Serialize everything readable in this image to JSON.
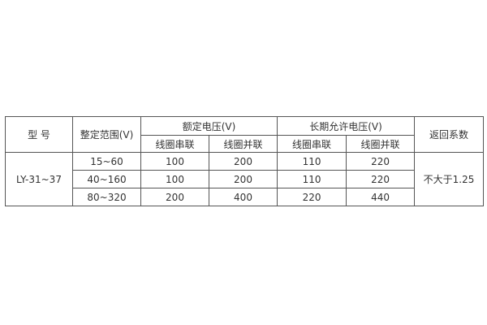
{
  "table": {
    "headers": {
      "model": "型 号",
      "range": "整定范围(V)",
      "rated_voltage": "额定电压(V)",
      "long_term_voltage": "长期允许电压(V)",
      "return_coefficient": "返回系数",
      "series": "线圈串联",
      "parallel": "线圈并联"
    },
    "model": "LY-31~37",
    "return_coefficient": "不大于1.25",
    "rows": [
      {
        "range": "15~60",
        "rated_series": "100",
        "rated_parallel": "200",
        "long_series": "110",
        "long_parallel": "220"
      },
      {
        "range": "40~160",
        "rated_series": "100",
        "rated_parallel": "200",
        "long_series": "110",
        "long_parallel": "220"
      },
      {
        "range": "80~320",
        "rated_series": "200",
        "rated_parallel": "400",
        "long_series": "220",
        "long_parallel": "440"
      }
    ]
  }
}
